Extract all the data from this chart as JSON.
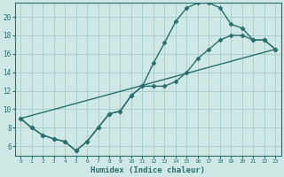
{
  "bg_color": "#cde8e5",
  "grid_color": "#aacfcc",
  "line_color": "#2a6e6e",
  "marker": "D",
  "markersize": 2.5,
  "linewidth": 1.0,
  "xlabel": "Humidex (Indice chaleur)",
  "xlim": [
    -0.5,
    23.5
  ],
  "ylim": [
    5.0,
    21.5
  ],
  "yticks": [
    6,
    8,
    10,
    12,
    14,
    16,
    18,
    20
  ],
  "xticks": [
    0,
    1,
    2,
    3,
    4,
    5,
    6,
    7,
    8,
    9,
    10,
    11,
    12,
    13,
    14,
    15,
    16,
    17,
    18,
    19,
    20,
    21,
    22,
    23
  ],
  "curve1_x": [
    0,
    1,
    2,
    3,
    4,
    5,
    6,
    7,
    8,
    9,
    10,
    11,
    12,
    13,
    14,
    15,
    16,
    17,
    18,
    19,
    20,
    21,
    22,
    23
  ],
  "curve1_y": [
    9.0,
    8.0,
    7.2,
    6.8,
    6.5,
    5.5,
    6.5,
    8.0,
    9.5,
    9.8,
    11.5,
    12.5,
    15.0,
    17.2,
    19.5,
    21.0,
    21.5,
    21.5,
    21.0,
    19.2,
    18.8,
    17.5,
    17.5,
    16.5
  ],
  "curve2_x": [
    0,
    1,
    2,
    3,
    4,
    5,
    6,
    7,
    8,
    9,
    10,
    11,
    12,
    13,
    14,
    15,
    16,
    17,
    18,
    19,
    20,
    21,
    22,
    23
  ],
  "curve2_y": [
    9.0,
    8.0,
    7.2,
    6.8,
    6.5,
    5.5,
    6.5,
    8.0,
    9.5,
    9.8,
    11.5,
    12.5,
    12.5,
    12.5,
    13.0,
    14.0,
    15.5,
    16.5,
    17.5,
    18.0,
    18.0,
    17.5,
    17.5,
    16.5
  ],
  "line3_x": [
    0,
    23
  ],
  "line3_y": [
    9.0,
    16.5
  ]
}
